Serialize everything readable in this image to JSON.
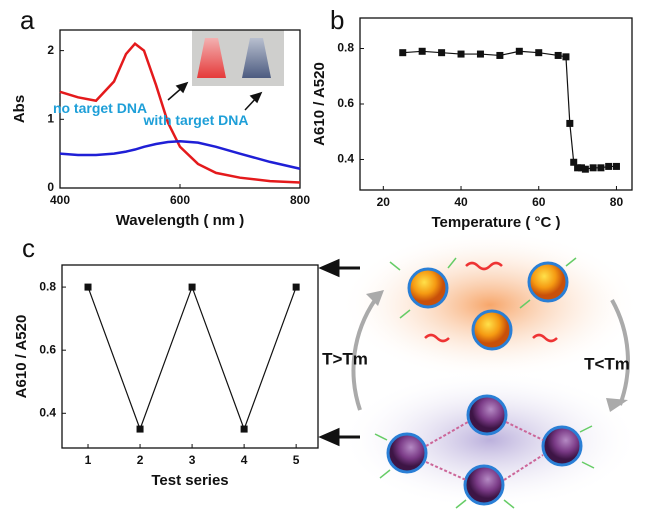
{
  "chart_data": [
    {
      "type": "line",
      "panel_label": "a",
      "x_label": "Wavelength ( nm )",
      "y_label": "Abs",
      "x": [
        400,
        430,
        460,
        490,
        510,
        525,
        540,
        560,
        580,
        600,
        630,
        660,
        700,
        750,
        800
      ],
      "series": [
        {
          "name": "no target DNA",
          "color": "#e41a1c",
          "values": [
            1.4,
            1.32,
            1.27,
            1.55,
            1.95,
            2.1,
            2.0,
            1.5,
            0.95,
            0.6,
            0.35,
            0.22,
            0.15,
            0.1,
            0.08
          ]
        },
        {
          "name": "with target DNA",
          "color": "#1f1fd6",
          "values": [
            0.5,
            0.48,
            0.48,
            0.5,
            0.53,
            0.56,
            0.6,
            0.64,
            0.67,
            0.68,
            0.66,
            0.6,
            0.5,
            0.38,
            0.28
          ]
        }
      ],
      "xlim": [
        400,
        800
      ],
      "xticks": [
        400,
        600,
        800
      ],
      "ylim": [
        0,
        2.3
      ],
      "yticks": [
        0,
        1,
        2
      ],
      "markers": false
    },
    {
      "type": "line",
      "panel_label": "b",
      "x_label": "Temperature ( °C )",
      "y_label": "A610 / A520",
      "x": [
        25,
        30,
        35,
        40,
        45,
        50,
        55,
        60,
        65,
        67,
        68,
        69,
        70,
        71,
        72,
        74,
        76,
        78,
        80
      ],
      "values": [
        0.785,
        0.79,
        0.785,
        0.78,
        0.78,
        0.775,
        0.79,
        0.785,
        0.775,
        0.77,
        0.53,
        0.39,
        0.37,
        0.37,
        0.365,
        0.37,
        0.37,
        0.375,
        0.375
      ],
      "color": "#111111",
      "xlim": [
        14,
        84
      ],
      "xticks": [
        20,
        40,
        60,
        80
      ],
      "ylim": [
        0.29,
        0.91
      ],
      "yticks": [
        0.4,
        0.6,
        0.8
      ],
      "markers": true
    },
    {
      "type": "line",
      "panel_label": "c",
      "x_label": "Test series",
      "y_label": "A610 / A520",
      "x": [
        1,
        2,
        3,
        4,
        5
      ],
      "values": [
        0.8,
        0.35,
        0.8,
        0.35,
        0.8
      ],
      "color": "#111111",
      "xlim": [
        0.5,
        5.42
      ],
      "xticks": [
        1,
        2,
        3,
        4,
        5
      ],
      "ylim": [
        0.29,
        0.87
      ],
      "yticks": [
        0.4,
        0.6,
        0.8
      ],
      "markers": true
    }
  ],
  "diagram": {
    "hot_label": "T>Tm",
    "cold_label": "T<Tm"
  }
}
